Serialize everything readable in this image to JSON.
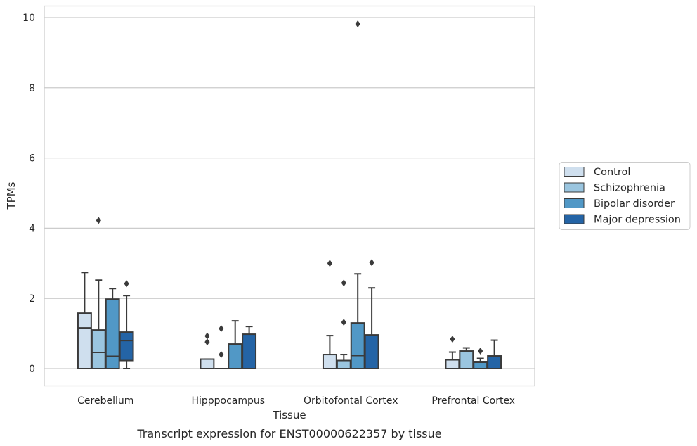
{
  "chart_data": {
    "type": "box",
    "xlabel": "Tissue",
    "ylabel": "TPMs",
    "caption": "Transcript expression for ENST00000622357 by tissue",
    "ylim": [
      -0.45,
      10.3
    ],
    "yticks": [
      0,
      2,
      4,
      6,
      8,
      10
    ],
    "grid": "horizontal",
    "legend_position": "right",
    "categories": [
      "Cerebellum",
      "Hipppocampus",
      "Orbitofontal Cortex",
      "Prefrontal Cortex"
    ],
    "series": [
      {
        "name": "Control",
        "color": "#cfdfee",
        "boxes": [
          {
            "q1": 0,
            "median": 1.16,
            "q3": 1.58,
            "whisker_low": 0,
            "whisker_high": 2.74,
            "outliers": []
          },
          {
            "q1": 0,
            "median": 0,
            "q3": 0.27,
            "whisker_low": 0,
            "whisker_high": 0.27,
            "outliers": [
              0.76,
              0.93
            ]
          },
          {
            "q1": 0,
            "median": 0,
            "q3": 0.4,
            "whisker_low": 0,
            "whisker_high": 0.94,
            "outliers": [
              3.0
            ]
          },
          {
            "q1": 0,
            "median": 0,
            "q3": 0.25,
            "whisker_low": 0,
            "whisker_high": 0.47,
            "outliers": [
              0.84
            ]
          }
        ]
      },
      {
        "name": "Schizophrenia",
        "color": "#9ac5df",
        "boxes": [
          {
            "q1": 0,
            "median": 0.46,
            "q3": 1.1,
            "whisker_low": 0,
            "whisker_high": 2.52,
            "outliers": [
              4.22
            ]
          },
          {
            "q1": 0,
            "median": 0,
            "q3": 0,
            "whisker_low": 0,
            "whisker_high": 0,
            "outliers": [
              0.4,
              1.14
            ]
          },
          {
            "q1": 0,
            "median": 0,
            "q3": 0.23,
            "whisker_low": 0,
            "whisker_high": 0.4,
            "outliers": [
              1.32,
              2.44
            ]
          },
          {
            "q1": 0,
            "median": 0.48,
            "q3": 0.5,
            "whisker_low": 0,
            "whisker_high": 0.59,
            "outliers": []
          }
        ]
      },
      {
        "name": "Bipolar disorder",
        "color": "#5198c6",
        "boxes": [
          {
            "q1": 0,
            "median": 0.35,
            "q3": 1.98,
            "whisker_low": 0,
            "whisker_high": 2.28,
            "outliers": []
          },
          {
            "q1": 0,
            "median": 0,
            "q3": 0.7,
            "whisker_low": 0,
            "whisker_high": 1.36,
            "outliers": []
          },
          {
            "q1": 0,
            "median": 0.37,
            "q3": 1.3,
            "whisker_low": 0,
            "whisker_high": 2.7,
            "outliers": [
              9.82
            ]
          },
          {
            "q1": 0,
            "median": 0.18,
            "q3": 0.2,
            "whisker_low": 0,
            "whisker_high": 0.29,
            "outliers": [
              0.5
            ]
          }
        ]
      },
      {
        "name": "Major depression",
        "color": "#2464a6",
        "boxes": [
          {
            "q1": 0.23,
            "median": 0.8,
            "q3": 1.04,
            "whisker_low": 0,
            "whisker_high": 2.08,
            "outliers": [
              2.42
            ]
          },
          {
            "q1": 0,
            "median": 0,
            "q3": 0.98,
            "whisker_low": 0,
            "whisker_high": 1.2,
            "outliers": []
          },
          {
            "q1": 0,
            "median": 0,
            "q3": 0.96,
            "whisker_low": 0,
            "whisker_high": 2.3,
            "outliers": [
              3.02
            ]
          },
          {
            "q1": 0,
            "median": 0.35,
            "q3": 0.36,
            "whisker_low": 0,
            "whisker_high": 0.81,
            "outliers": []
          }
        ]
      }
    ]
  }
}
